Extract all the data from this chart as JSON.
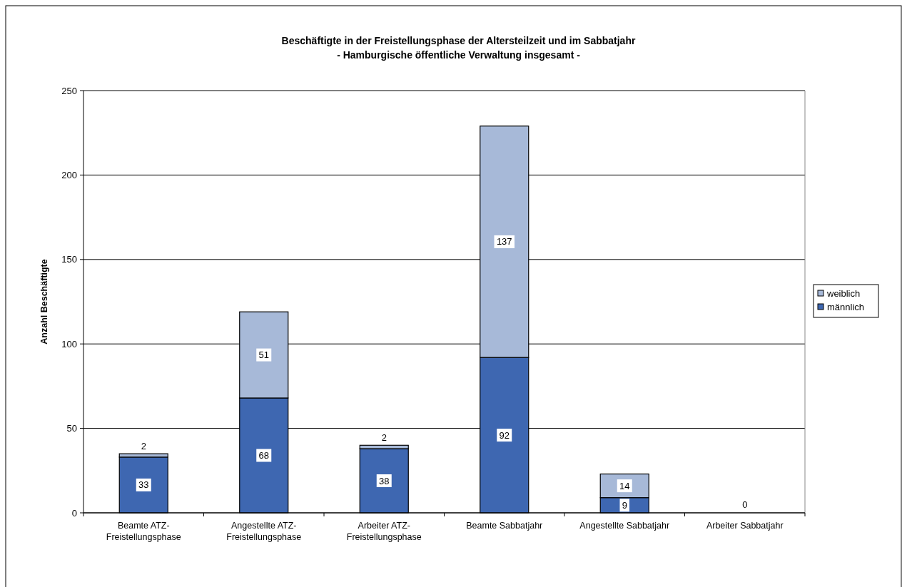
{
  "chart_data": {
    "type": "bar",
    "title": "Beschäftigte in der Freistellungsphase der Altersteilzeit und im Sabbatjahr",
    "subtitle": "- Hamburgische öffentliche Verwaltung insgesamt -",
    "ylabel": "Anzahl Beschäftigte",
    "categories": [
      "Beamte ATZ-Freistellungsphase",
      "Angestellte ATZ-Freistellungsphase",
      "Arbeiter ATZ-Freistellungsphase",
      "Beamte Sabbatjahr",
      "Angestellte Sabbatjahr",
      "Arbeiter Sabbatjahr"
    ],
    "stacked": true,
    "series": [
      {
        "name": "männlich",
        "color": "#3e67b1",
        "values": [
          33,
          68,
          38,
          92,
          9,
          0
        ],
        "value_labels": [
          "33",
          "68",
          "38",
          "92",
          "9",
          "0"
        ]
      },
      {
        "name": "weiblich",
        "color": "#a7b9d8",
        "values": [
          2,
          51,
          2,
          137,
          14,
          0
        ],
        "value_labels": [
          "2",
          "51",
          "2",
          "137",
          "14",
          null
        ]
      }
    ],
    "ylim": [
      0,
      250
    ],
    "yticks": [
      0,
      50,
      100,
      150,
      200,
      250
    ],
    "grid": "y",
    "legend": "right"
  }
}
